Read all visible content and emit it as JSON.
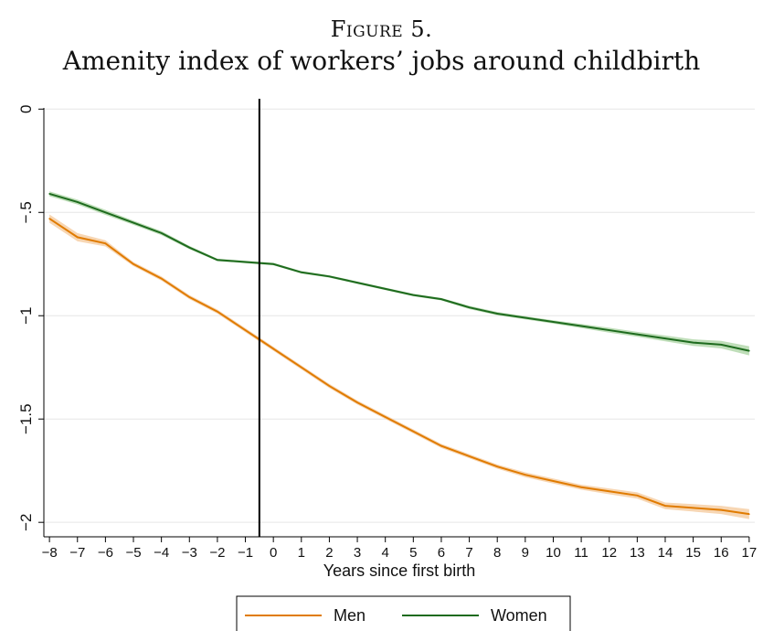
{
  "figure": {
    "label": "Figure 5.",
    "caption": "Amenity index of workers’ jobs around childbirth"
  },
  "chart_data": {
    "type": "line",
    "xlabel": "Years since first birth",
    "ylabel": "",
    "x": [
      -8,
      -7,
      -6,
      -5,
      -4,
      -3,
      -2,
      -1,
      0,
      1,
      2,
      3,
      4,
      5,
      6,
      7,
      8,
      9,
      10,
      11,
      12,
      13,
      14,
      15,
      16,
      17
    ],
    "x_tick_labels": [
      "−8",
      "−7",
      "−6",
      "−5",
      "−4",
      "−3",
      "−2",
      "−1",
      "0",
      "1",
      "2",
      "3",
      "4",
      "5",
      "6",
      "7",
      "8",
      "9",
      "10",
      "11",
      "12",
      "13",
      "14",
      "15",
      "16",
      "17"
    ],
    "y_ticks": [
      0,
      -0.5,
      -1,
      -1.5,
      -2
    ],
    "y_tick_labels": [
      "0",
      "−.5",
      "−1",
      "−1.5",
      "−2"
    ],
    "xlim": [
      -8.2,
      17.2
    ],
    "ylim": [
      -2.07,
      0.05
    ],
    "event_line_x": -0.5,
    "grid": "horizontal",
    "legend_position": "bottom",
    "series": [
      {
        "name": "Men",
        "color": "#e07b00",
        "band_color": "#f4c89a",
        "values": [
          -0.53,
          -0.62,
          -0.65,
          -0.75,
          -0.82,
          -0.91,
          -0.98,
          -1.07,
          -1.16,
          -1.25,
          -1.34,
          -1.42,
          -1.49,
          -1.56,
          -1.63,
          -1.68,
          -1.73,
          -1.77,
          -1.8,
          -1.83,
          -1.85,
          -1.87,
          -1.92,
          -1.93,
          -1.94,
          -1.96
        ],
        "band": [
          0.02,
          0.02,
          0.015,
          0.01,
          0.01,
          0.01,
          0.01,
          0.01,
          0.01,
          0.01,
          0.01,
          0.01,
          0.01,
          0.01,
          0.01,
          0.01,
          0.01,
          0.012,
          0.012,
          0.012,
          0.014,
          0.015,
          0.016,
          0.018,
          0.02,
          0.024
        ]
      },
      {
        "name": "Women",
        "color": "#1e6b1e",
        "band_color": "#a9d3a1",
        "values": [
          -0.41,
          -0.45,
          -0.5,
          -0.55,
          -0.6,
          -0.67,
          -0.73,
          -0.74,
          -0.75,
          -0.79,
          -0.81,
          -0.84,
          -0.87,
          -0.9,
          -0.92,
          -0.96,
          -0.99,
          -1.01,
          -1.03,
          -1.05,
          -1.07,
          -1.09,
          -1.11,
          -1.13,
          -1.14,
          -1.17
        ],
        "band": [
          0.012,
          0.012,
          0.012,
          0.01,
          0.01,
          0.008,
          0.006,
          0.006,
          0.006,
          0.006,
          0.006,
          0.006,
          0.006,
          0.006,
          0.006,
          0.008,
          0.008,
          0.008,
          0.008,
          0.01,
          0.012,
          0.012,
          0.014,
          0.016,
          0.018,
          0.022
        ]
      }
    ]
  }
}
